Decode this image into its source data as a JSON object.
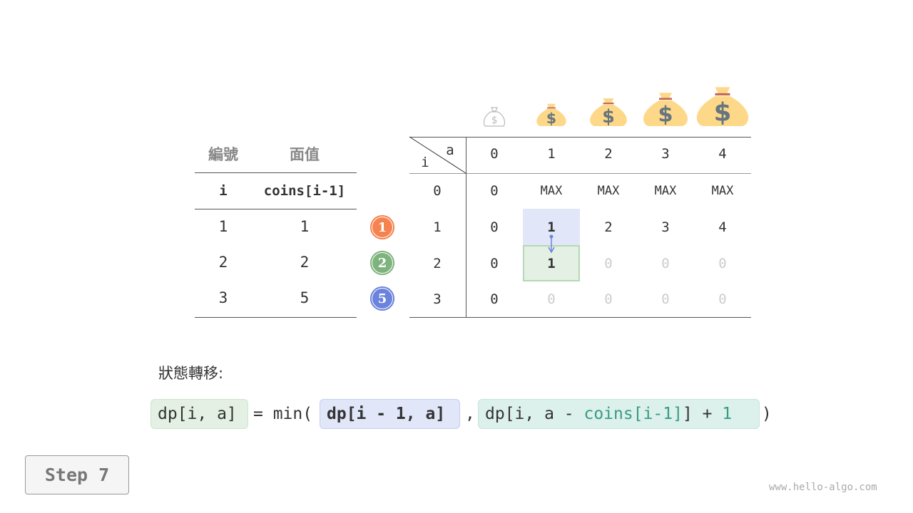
{
  "left_table": {
    "headers": [
      "編號",
      "面值"
    ],
    "subheaders": [
      "i",
      "coins[i-1]"
    ],
    "rows": [
      [
        "1",
        "1"
      ],
      [
        "2",
        "2"
      ],
      [
        "3",
        "5"
      ]
    ]
  },
  "coins": [
    {
      "label": "1",
      "color": "#f5834f"
    },
    {
      "label": "2",
      "color": "#7fb37e"
    },
    {
      "label": "5",
      "color": "#6b83dc"
    }
  ],
  "dp_table": {
    "corner_col": "a",
    "corner_row": "i",
    "col_headers": [
      "0",
      "1",
      "2",
      "3",
      "4"
    ],
    "row_headers": [
      "0",
      "1",
      "2",
      "3"
    ],
    "rows": [
      [
        "0",
        "MAX",
        "MAX",
        "MAX",
        "MAX"
      ],
      [
        "0",
        "1",
        "2",
        "3",
        "4"
      ],
      [
        "0",
        "1",
        "0",
        "0",
        "0"
      ],
      [
        "0",
        "0",
        "0",
        "0",
        "0"
      ]
    ]
  },
  "colors": {
    "blue_highlight": "#e1e6f8",
    "green_highlight": "#e3f0e3",
    "teal": "#3a9b83",
    "arrow": "#6b83dc"
  },
  "formula": {
    "title": "狀態轉移:",
    "lhs": "dp[i, a]",
    "eq": "= min(",
    "term1": "dp[i - 1, a]",
    "comma": ",",
    "term2_a": "dp[i, a - ",
    "term2_b": "coins[i-1]",
    "term2_c": "] + ",
    "term2_d": "1",
    "close": ")"
  },
  "step_button": "Step 7",
  "watermark": "www.hello-algo.com"
}
